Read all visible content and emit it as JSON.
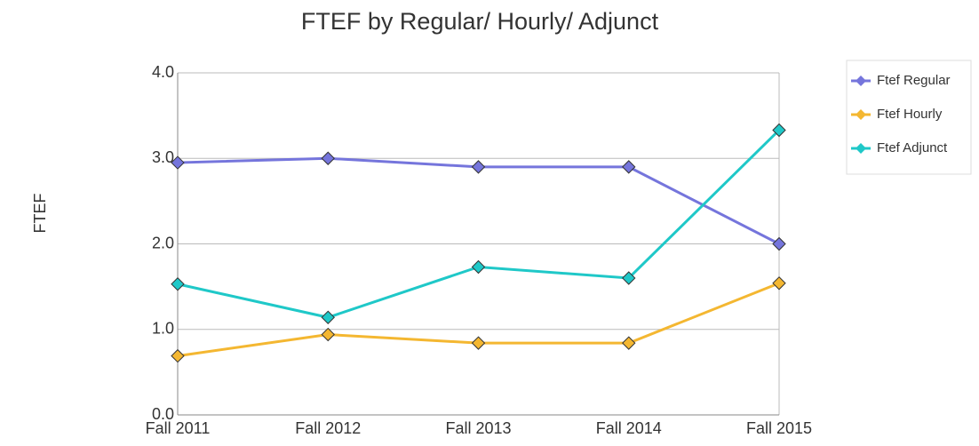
{
  "chart_data": {
    "type": "line",
    "title": "FTEF by Regular/ Hourly/ Adjunct",
    "y_label": "FTEF",
    "categories": [
      "Fall 2011",
      "Fall 2012",
      "Fall 2013",
      "Fall 2014",
      "Fall 2015"
    ],
    "series": [
      {
        "name": "Ftef Regular",
        "color": "#7575dc",
        "values": [
          2.95,
          3.0,
          2.9,
          2.9,
          2.0
        ]
      },
      {
        "name": "Ftef Hourly",
        "color": "#f4b731",
        "values": [
          0.69,
          0.94,
          0.84,
          0.84,
          1.54
        ]
      },
      {
        "name": "Ftef Adjunct",
        "color": "#1fc8c8",
        "values": [
          1.53,
          1.14,
          1.73,
          1.6,
          3.33
        ]
      }
    ],
    "ylim": [
      0,
      4
    ],
    "yticks": [
      {
        "value": 0,
        "label": "0.0"
      },
      {
        "value": 1,
        "label": "1.0"
      },
      {
        "value": 2,
        "label": "2.0"
      },
      {
        "value": 3,
        "label": "3.0"
      },
      {
        "value": 4,
        "label": "4.0"
      }
    ],
    "grid": true,
    "legend": "right"
  }
}
